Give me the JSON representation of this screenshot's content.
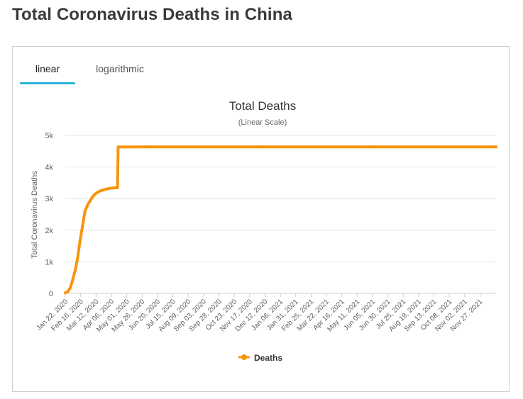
{
  "page": {
    "title": "Total Coronavirus Deaths in China"
  },
  "tabs": [
    {
      "label": "linear",
      "active": true
    },
    {
      "label": "logarithmic",
      "active": false
    }
  ],
  "colors": {
    "series": "#f7950f",
    "tab_accent": "#2bb3e0",
    "grid": "#e6e6e6"
  },
  "chart_data": {
    "type": "line",
    "title": "Total Deaths",
    "subtitle": "(Linear Scale)",
    "ylabel": "Total Coronavirus Deaths",
    "xlabel": "",
    "ylim": [
      0,
      5000
    ],
    "y_ticks": [
      {
        "value": 0,
        "label": "0"
      },
      {
        "value": 1000,
        "label": "1k"
      },
      {
        "value": 2000,
        "label": "2k"
      },
      {
        "value": 3000,
        "label": "3k"
      },
      {
        "value": 4000,
        "label": "4k"
      },
      {
        "value": 5000,
        "label": "5k"
      }
    ],
    "x_tick_labels": [
      "Jan 22, 2020",
      "Feb 16, 2020",
      "Mar 12, 2020",
      "Apr 06, 2020",
      "May 01, 2020",
      "May 26, 2020",
      "Jun 20, 2020",
      "Jul 15, 2020",
      "Aug 09, 2020",
      "Sep 03, 2020",
      "Sep 28, 2020",
      "Oct 23, 2020",
      "Nov 17, 2020",
      "Dec 12, 2020",
      "Jan 06, 2021",
      "Jan 31, 2021",
      "Feb 25, 2021",
      "Mar 22, 2021",
      "Apr 16, 2021",
      "May 11, 2021",
      "Jun 05, 2021",
      "Jun 30, 2021",
      "Jul 25, 2021",
      "Aug 19, 2021",
      "Sep 13, 2021",
      "Oct 08, 2021",
      "Nov 02, 2021",
      "Nov 27, 2021"
    ],
    "x_range": [
      "2020-01-22",
      "2021-12-23"
    ],
    "grid": true,
    "legend_position": "bottom",
    "series": [
      {
        "name": "Deaths",
        "color": "#f7950f",
        "points": [
          {
            "date": "2020-01-22",
            "value": 17
          },
          {
            "date": "2020-01-26",
            "value": 56
          },
          {
            "date": "2020-01-30",
            "value": 170
          },
          {
            "date": "2020-02-03",
            "value": 425
          },
          {
            "date": "2020-02-07",
            "value": 722
          },
          {
            "date": "2020-02-11",
            "value": 1107
          },
          {
            "date": "2020-02-15",
            "value": 1665
          },
          {
            "date": "2020-02-19",
            "value": 2118
          },
          {
            "date": "2020-02-23",
            "value": 2592
          },
          {
            "date": "2020-02-27",
            "value": 2788
          },
          {
            "date": "2020-03-02",
            "value": 2912
          },
          {
            "date": "2020-03-06",
            "value": 3042
          },
          {
            "date": "2020-03-10",
            "value": 3136
          },
          {
            "date": "2020-03-14",
            "value": 3189
          },
          {
            "date": "2020-03-18",
            "value": 3237
          },
          {
            "date": "2020-03-22",
            "value": 3261
          },
          {
            "date": "2020-03-26",
            "value": 3287
          },
          {
            "date": "2020-03-30",
            "value": 3304
          },
          {
            "date": "2020-04-03",
            "value": 3322
          },
          {
            "date": "2020-04-07",
            "value": 3333
          },
          {
            "date": "2020-04-11",
            "value": 3339
          },
          {
            "date": "2020-04-16",
            "value": 3342
          },
          {
            "date": "2020-04-17",
            "value": 4632
          },
          {
            "date": "2020-06-01",
            "value": 4634
          },
          {
            "date": "2020-12-01",
            "value": 4634
          },
          {
            "date": "2021-06-01",
            "value": 4636
          },
          {
            "date": "2021-12-23",
            "value": 4636
          }
        ]
      }
    ]
  }
}
